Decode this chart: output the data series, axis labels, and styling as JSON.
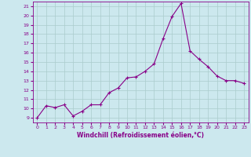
{
  "x": [
    0,
    1,
    2,
    3,
    4,
    5,
    6,
    7,
    8,
    9,
    10,
    11,
    12,
    13,
    14,
    15,
    16,
    17,
    18,
    19,
    20,
    21,
    22,
    23
  ],
  "y": [
    9.0,
    10.3,
    10.1,
    10.4,
    9.2,
    9.7,
    10.4,
    10.4,
    11.7,
    12.2,
    13.3,
    13.4,
    14.0,
    14.8,
    17.5,
    19.9,
    21.3,
    16.2,
    15.3,
    14.5,
    13.5,
    13.0,
    13.0,
    12.7
  ],
  "line_color": "#880088",
  "marker": "+",
  "bg_color": "#cce8ee",
  "grid_color": "#aacccc",
  "xlabel": "Windchill (Refroidissement éolien,°C)",
  "xlabel_color": "#880088",
  "tick_color": "#880088",
  "ylim": [
    8.5,
    21.5
  ],
  "xlim": [
    -0.5,
    23.5
  ],
  "yticks": [
    9,
    10,
    11,
    12,
    13,
    14,
    15,
    16,
    17,
    18,
    19,
    20,
    21
  ],
  "xticks": [
    0,
    1,
    2,
    3,
    4,
    5,
    6,
    7,
    8,
    9,
    10,
    11,
    12,
    13,
    14,
    15,
    16,
    17,
    18,
    19,
    20,
    21,
    22,
    23
  ]
}
